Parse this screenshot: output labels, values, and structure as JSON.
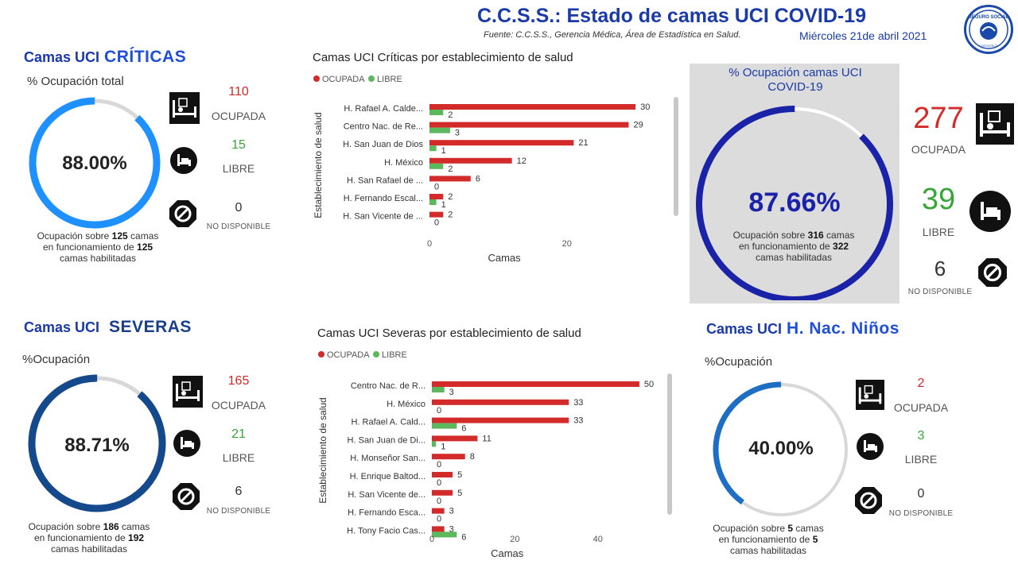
{
  "header": {
    "title": "C.C.S.S.: Estado de camas UCI COVID-19",
    "source": "Fuente: C.C.S.S., Gerencia Médica, Área de Estadística en Salud.",
    "date": "Miércoles 21de abril 2021",
    "logo_text": "SEGURO SOCIAL",
    "logo_sub": "COSTA RICA"
  },
  "criticas": {
    "title_prefix": "Camas UCI",
    "title_big": "CRÍTICAS",
    "subtitle": "% Ocupación total",
    "percent_label": "88.00%",
    "percent": 88.0,
    "ocupada_value": "110",
    "ocupada_label": "OCUPADA",
    "libre_value": "15",
    "libre_label": "LIBRE",
    "nodisp_value": "0",
    "nodisp_label": "NO DISPONIBLE",
    "note_a": "Ocupación sobre",
    "note_n1": "125",
    "note_b": "camas",
    "note_c": "en funcionamiento de",
    "note_n2": "125",
    "note_d": "camas habilitadas"
  },
  "total": {
    "title": "% Ocupación camas UCI COVID-19",
    "percent_label": "87.66%",
    "percent": 87.66,
    "ocupada_value": "277",
    "ocupada_label": "OCUPADA",
    "libre_value": "39",
    "libre_label": "LIBRE",
    "nodisp_value": "6",
    "nodisp_label": "NO DISPONIBLE",
    "note_a": "Ocupación sobre",
    "note_n1": "316",
    "note_b": "camas",
    "note_c": "en funcionamiento de",
    "note_n2": "322",
    "note_d": "camas habilitadas"
  },
  "severas": {
    "title_prefix": "Camas UCI",
    "title_big": "SEVERAS",
    "subtitle": "%Ocupación",
    "percent_label": "88.71%",
    "percent": 88.71,
    "ocupada_value": "165",
    "ocupada_label": "OCUPADA",
    "libre_value": "21",
    "libre_label": "LIBRE",
    "nodisp_value": "6",
    "nodisp_label": "NO DISPONIBLE",
    "note_a": "Ocupación sobre",
    "note_n1": "186",
    "note_b": "camas",
    "note_c": "en funcionamiento de",
    "note_n2": "192",
    "note_d": "camas habilitadas"
  },
  "ninos": {
    "title_prefix": "Camas UCI",
    "title_big": "H. Nac. Niños",
    "subtitle": "%Ocupación",
    "percent_label": "40.00%",
    "percent": 40.0,
    "ocupada_value": "2",
    "ocupada_label": "OCUPADA",
    "libre_value": "3",
    "libre_label": "LIBRE",
    "nodisp_value": "0",
    "nodisp_label": "NO DISPONIBLE",
    "note_a": "Ocupación sobre",
    "note_n1": "5",
    "note_b": "camas",
    "note_c": "en funcionamiento de",
    "note_n2": "5",
    "note_d": "camas habilitadas"
  },
  "colors": {
    "ocupada": "#d32a2a",
    "libre": "#5cb85c",
    "ring_criticas": "#1e90ff",
    "ring_total": "#1a22a8",
    "ring_severas": "#144a8c",
    "ring_ninos": "#1e6fc4",
    "ring_track": "#d8d8d8"
  },
  "chart_data": [
    {
      "type": "bar",
      "orientation": "horizontal",
      "title": "Camas UCI Críticas por establecimiento de salud",
      "xlabel": "Camas",
      "ylabel": "Establecimiento de salud",
      "categories": [
        "H. Rafael A. Calde...",
        "Centro Nac. de Re...",
        "H. San Juan de Dios",
        "H. México",
        "H. San Rafael de ...",
        "H. Fernando Escal...",
        "H. San Vicente de ..."
      ],
      "series": [
        {
          "name": "OCUPADA",
          "values": [
            30,
            29,
            21,
            12,
            6,
            2,
            2
          ]
        },
        {
          "name": "LIBRE",
          "values": [
            2,
            3,
            1,
            2,
            0,
            1,
            0
          ]
        }
      ],
      "xlim": [
        0,
        33
      ],
      "xticks": [
        0,
        20
      ],
      "legend": "top-left"
    },
    {
      "type": "bar",
      "orientation": "horizontal",
      "title": "Camas UCI Severas por establecimiento de salud",
      "xlabel": "Camas",
      "ylabel": "Establecimiento de salud",
      "categories": [
        "Centro Nac. de R...",
        "H. México",
        "H. Rafael A. Cald...",
        "H. San Juan de Di...",
        "H. Monseñor San...",
        "H. Enrique Baltod...",
        "H. San Vicente de...",
        "H. Fernando Esca...",
        "H. Tony Facio Cas..."
      ],
      "series": [
        {
          "name": "OCUPADA",
          "values": [
            50,
            33,
            33,
            11,
            8,
            5,
            5,
            3,
            3
          ]
        },
        {
          "name": "LIBRE",
          "values": [
            3,
            0,
            6,
            1,
            0,
            0,
            0,
            0,
            6
          ]
        }
      ],
      "xlim": [
        0,
        55
      ],
      "xticks": [
        0,
        20,
        40
      ],
      "legend": "top-left"
    }
  ]
}
